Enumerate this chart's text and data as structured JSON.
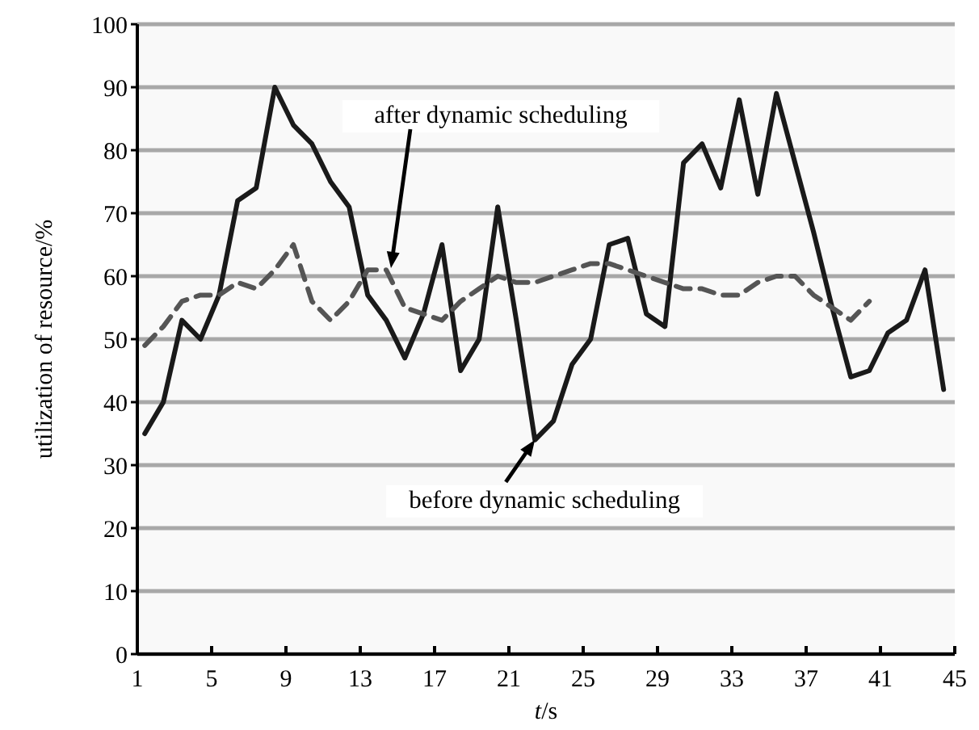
{
  "chart_data": {
    "type": "line",
    "xlabel": "t/s",
    "ylabel": "utilization of resource/%",
    "xlim": [
      1,
      45
    ],
    "xticks": [
      1,
      5,
      9,
      13,
      17,
      21,
      25,
      29,
      33,
      37,
      41,
      45
    ],
    "ylim": [
      0,
      100
    ],
    "yticks": [
      0,
      10,
      20,
      30,
      40,
      50,
      60,
      70,
      80,
      90,
      100
    ],
    "grid": "y",
    "marker": "none",
    "series": [
      {
        "color": "#1a1a1a",
        "line_style": "solid",
        "x": [
          1.4,
          2.4,
          3.4,
          4.4,
          5.4,
          6.4,
          7.4,
          8.4,
          9.4,
          10.4,
          11.4,
          12.4,
          13.4,
          14.4,
          15.4,
          16.4,
          17.4,
          18.4,
          19.4,
          20.4,
          21.4,
          22.4,
          23.4,
          24.4,
          25.4,
          26.4,
          27.4,
          28.4,
          29.4,
          30.4,
          31.4,
          32.4,
          33.4,
          34.4,
          35.4,
          36.4,
          37.4,
          38.4,
          39.4,
          40.4,
          41.4,
          42.4,
          43.4,
          44.4
        ],
        "values": [
          35,
          40,
          53,
          50,
          57,
          72,
          74,
          90,
          84,
          81,
          75,
          71,
          57,
          53,
          47,
          54,
          65,
          45,
          50,
          71,
          53,
          34,
          37,
          46,
          50,
          65,
          66,
          54,
          52,
          78,
          81,
          74,
          88,
          73,
          89,
          78,
          67,
          55,
          44,
          45,
          51,
          53,
          61,
          42
        ]
      },
      {
        "color": "#555555",
        "line_style": "dashed",
        "x": [
          1.4,
          2.4,
          3.4,
          4.4,
          5.4,
          6.4,
          7.4,
          8.4,
          9.4,
          10.4,
          11.4,
          12.4,
          13.4,
          14.4,
          15.4,
          16.4,
          17.4,
          18.4,
          19.4,
          20.4,
          21.4,
          22.4,
          23.4,
          24.4,
          25.4,
          26.4,
          27.4,
          28.4,
          29.4,
          30.4,
          31.4,
          32.4,
          33.4,
          34.4,
          35.4,
          36.4,
          37.4,
          38.4,
          39.4,
          40.4
        ],
        "values": [
          49,
          52,
          56,
          57,
          57,
          59,
          58,
          61,
          65,
          56,
          53,
          56,
          61,
          61,
          55,
          54,
          53,
          56,
          58,
          60,
          59,
          59,
          60,
          61,
          62,
          62,
          61,
          60,
          59,
          58,
          58,
          57,
          57,
          59,
          60,
          60,
          57,
          55,
          53,
          56
        ]
      }
    ],
    "annotations": [
      "after dynamic scheduling",
      {
        "text": "before dynamic scheduling",
        "x": 22.4,
        "y": 34
      }
    ]
  }
}
